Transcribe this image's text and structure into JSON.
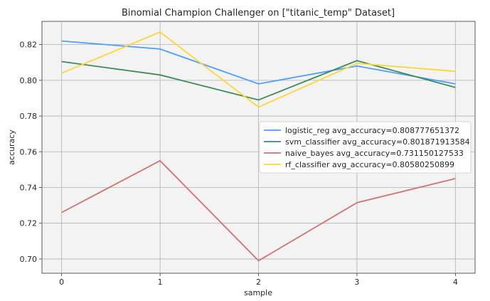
{
  "chart_data": {
    "type": "line",
    "title": "Binomial Champion Challenger on [\"titanic_temp\" Dataset]",
    "xlabel": "sample",
    "ylabel": "accuracy",
    "x": [
      0,
      1,
      2,
      3,
      4
    ],
    "xlim": [
      -0.2,
      4.2
    ],
    "ylim": [
      0.692,
      0.833
    ],
    "xticks": [
      "0",
      "1",
      "2",
      "3",
      "4"
    ],
    "yticks": [
      "0.70",
      "0.72",
      "0.74",
      "0.76",
      "0.78",
      "0.80",
      "0.82"
    ],
    "ytick_values": [
      0.7,
      0.72,
      0.74,
      0.76,
      0.78,
      0.8,
      0.82
    ],
    "grid": true,
    "legend_position": "center-right",
    "series": [
      {
        "name": "logistic_reg avg_accuracy=0.808777651372",
        "color": "#4a9fff",
        "values": [
          0.822,
          0.8175,
          0.798,
          0.808,
          0.798
        ]
      },
      {
        "name": "svm_classifier avg_accuracy=0.801871913584",
        "color": "#3d8c5c",
        "values": [
          0.8105,
          0.803,
          0.789,
          0.811,
          0.796
        ]
      },
      {
        "name": "naive_bayes avg_accuracy=0.731150127533",
        "color": "#d47070",
        "values": [
          0.726,
          0.755,
          0.699,
          0.7315,
          0.745
        ]
      },
      {
        "name": "rf_classifier avg_accuracy=0.80580250899",
        "color": "#ffd633",
        "values": [
          0.804,
          0.827,
          0.785,
          0.8095,
          0.805
        ]
      }
    ]
  }
}
